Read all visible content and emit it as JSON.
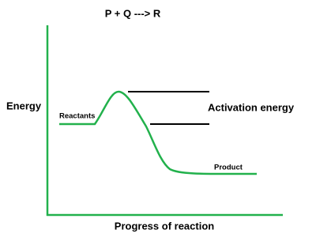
{
  "title": "P + Q ---> R",
  "axes": {
    "y_label": "Energy",
    "x_label": "Progress of reaction"
  },
  "labels": {
    "reactants": "Reactants",
    "activation": "Activation energy",
    "product": "Product"
  }
}
